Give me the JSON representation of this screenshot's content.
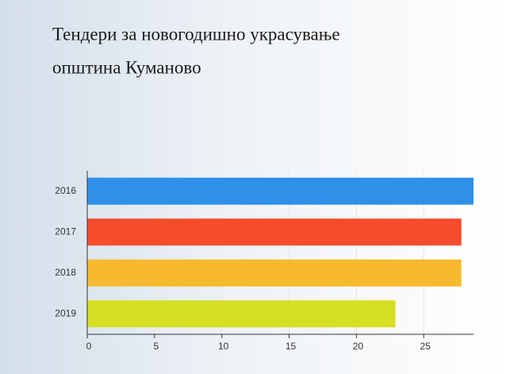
{
  "chart_data": {
    "type": "hbar",
    "title": [
      "Тендери за новогодишно украсување",
      "општина Куманово"
    ],
    "categories": [
      "2016",
      "2017",
      "2018",
      "2019"
    ],
    "values": [
      28.7,
      27.8,
      27.8,
      22.9
    ],
    "colors": [
      "#2e90e8",
      "#f64c2d",
      "#f7b92d",
      "#d7df23"
    ],
    "xlim": [
      0,
      28.7
    ],
    "xticks": [
      0,
      5,
      10,
      15,
      20,
      25
    ],
    "grid": true
  }
}
